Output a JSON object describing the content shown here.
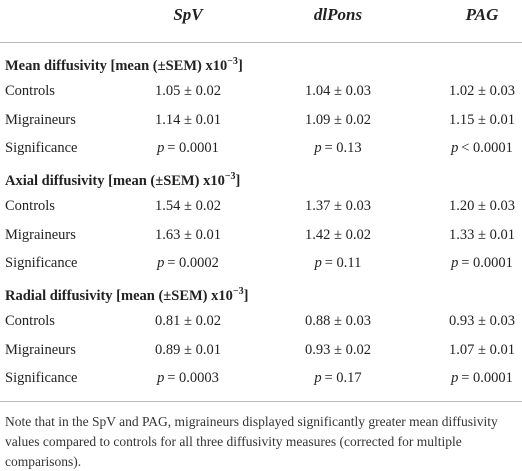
{
  "table": {
    "header": [
      "",
      "SpV",
      "dlPons",
      "PAG"
    ],
    "sections": [
      {
        "label": "Mean diffusivity [mean (±SEM) x10",
        "exponent": "−3",
        "suffix": "]",
        "rows": [
          [
            "Controls",
            "1.05 ± 0.02",
            "1.04 ± 0.03",
            "1.02 ± 0.03"
          ],
          [
            "Migraineurs",
            "1.14 ± 0.01",
            "1.09 ± 0.02",
            "1.15 ± 0.01"
          ]
        ],
        "significance": {
          "label": "Significance",
          "var": "p",
          "values": [
            "= 0.0001",
            "= 0.13",
            "< 0.0001"
          ]
        }
      },
      {
        "label": "Axial diffusivity [mean (±SEM) x10",
        "exponent": "−3",
        "suffix": "]",
        "rows": [
          [
            "Controls",
            "1.54 ± 0.02",
            "1.37 ± 0.03",
            "1.20 ± 0.03"
          ],
          [
            "Migraineurs",
            "1.63 ± 0.01",
            "1.42 ± 0.02",
            "1.33 ± 0.01"
          ]
        ],
        "significance": {
          "label": "Significance",
          "var": "p",
          "values": [
            "= 0.0002",
            "= 0.11",
            "= 0.0001"
          ]
        }
      },
      {
        "label": "Radial diffusivity [mean (±SEM) x10",
        "exponent": "−3",
        "suffix": "]",
        "rows": [
          [
            "Controls",
            "0.81 ± 0.02",
            "0.88 ± 0.03",
            "0.93 ± 0.03"
          ],
          [
            "Migraineurs",
            "0.89 ± 0.01",
            "0.93 ± 0.02",
            "1.07 ± 0.01"
          ]
        ],
        "significance": {
          "label": "Significance",
          "var": "p",
          "values": [
            "= 0.0003",
            "= 0.17",
            "= 0.0001"
          ]
        }
      }
    ],
    "note": "Note that in the SpV and PAG, migraineurs displayed significantly greater mean diffusivity values compared to controls for all three diffusivity measures (corrected for multiple comparisons)."
  }
}
